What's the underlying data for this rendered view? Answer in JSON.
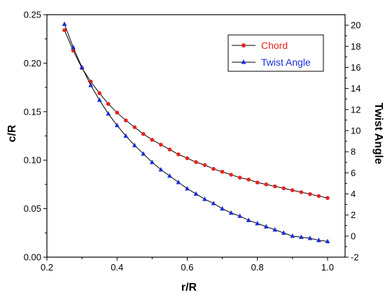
{
  "chart_data": {
    "type": "line",
    "xlabel": "r/R",
    "ylabel_left": "c/R",
    "ylabel_right": "Twist Angle",
    "xlim": [
      0.2,
      1.05
    ],
    "ylim_left": [
      0.0,
      0.25
    ],
    "ylim_right": [
      -2,
      21
    ],
    "xticks": [
      0.2,
      0.4,
      0.6,
      0.8,
      1.0
    ],
    "xtick_labels": [
      "0.2",
      "0.4",
      "0.6",
      "0.8",
      "1.0"
    ],
    "yticks_left": [
      0.0,
      0.05,
      0.1,
      0.15,
      0.2,
      0.25
    ],
    "ytick_labels_left": [
      "0.00",
      "0.05",
      "0.10",
      "0.15",
      "0.20",
      "0.25"
    ],
    "yticks_right": [
      -2,
      0,
      2,
      4,
      6,
      8,
      10,
      12,
      14,
      16,
      18,
      20
    ],
    "ytick_labels_right": [
      "-2",
      "0",
      "2",
      "4",
      "6",
      "8",
      "10",
      "12",
      "14",
      "16",
      "18",
      "20"
    ],
    "legend_position": "top-right",
    "grid": false,
    "series": [
      {
        "name": "Chord",
        "axis": "left",
        "color": "#e8221c",
        "marker": "circle",
        "x": [
          0.25,
          0.275,
          0.3,
          0.325,
          0.35,
          0.375,
          0.4,
          0.425,
          0.45,
          0.475,
          0.5,
          0.525,
          0.55,
          0.575,
          0.6,
          0.625,
          0.65,
          0.675,
          0.7,
          0.725,
          0.75,
          0.775,
          0.8,
          0.825,
          0.85,
          0.875,
          0.9,
          0.925,
          0.95,
          0.975,
          1.0
        ],
        "values": [
          0.234,
          0.213,
          0.195,
          0.181,
          0.169,
          0.158,
          0.149,
          0.141,
          0.134,
          0.127,
          0.121,
          0.116,
          0.111,
          0.106,
          0.102,
          0.098,
          0.095,
          0.091,
          0.088,
          0.085,
          0.082,
          0.08,
          0.077,
          0.075,
          0.073,
          0.071,
          0.069,
          0.067,
          0.065,
          0.063,
          0.061
        ]
      },
      {
        "name": "Twist Angle",
        "axis": "right",
        "color": "#1a2fd6",
        "marker": "triangle",
        "x": [
          0.25,
          0.275,
          0.3,
          0.325,
          0.35,
          0.375,
          0.4,
          0.425,
          0.45,
          0.475,
          0.5,
          0.525,
          0.55,
          0.575,
          0.6,
          0.625,
          0.65,
          0.675,
          0.7,
          0.725,
          0.75,
          0.775,
          0.8,
          0.825,
          0.85,
          0.875,
          0.9,
          0.925,
          0.95,
          0.975,
          1.0
        ],
        "values": [
          20.1,
          17.9,
          16.0,
          14.3,
          12.9,
          11.6,
          10.5,
          9.5,
          8.6,
          7.8,
          7.0,
          6.3,
          5.7,
          5.1,
          4.5,
          4.0,
          3.5,
          3.1,
          2.6,
          2.2,
          1.9,
          1.5,
          1.2,
          0.9,
          0.6,
          0.3,
          0.0,
          -0.1,
          -0.2,
          -0.4,
          -0.5
        ]
      }
    ]
  }
}
